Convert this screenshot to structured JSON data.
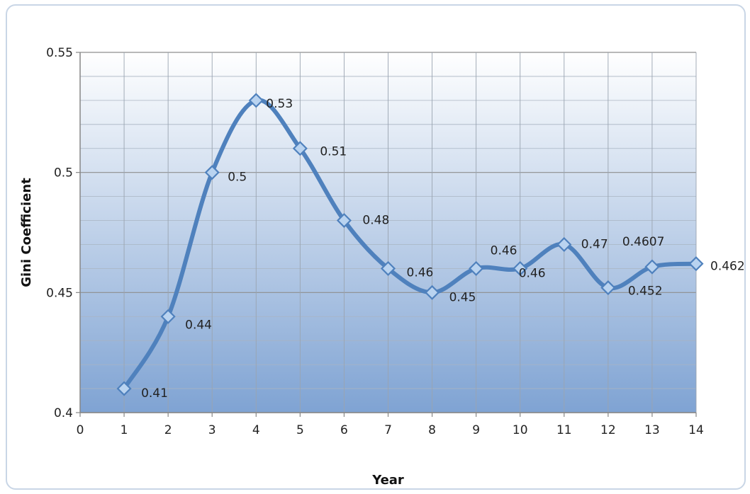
{
  "chart_data": {
    "type": "line",
    "title": "",
    "xlabel": "Year",
    "ylabel": "Gini Coefficient",
    "xlim": [
      0,
      14
    ],
    "ylim": [
      0.4,
      0.55
    ],
    "x_ticks": [
      "0",
      "1",
      "2",
      "3",
      "4",
      "5",
      "6",
      "7",
      "8",
      "9",
      "10",
      "11",
      "12",
      "13",
      "14"
    ],
    "y_ticks": [
      {
        "value": 0.4,
        "label": "0.4"
      },
      {
        "value": 0.45,
        "label": "0.45"
      },
      {
        "value": 0.5,
        "label": "0.5"
      },
      {
        "value": 0.55,
        "label": "0.55"
      }
    ],
    "grid": true,
    "smooth": true,
    "line_color": "#4f81bd",
    "marker_fill": "#b9d3f0",
    "plot_gradient": [
      "#ffffff",
      "#7fa3d3"
    ],
    "series": [
      {
        "x": [
          1,
          2,
          3,
          4,
          5,
          6,
          7,
          8,
          9,
          10,
          11,
          12,
          13,
          14
        ],
        "values": [
          0.41,
          0.44,
          0.5,
          0.53,
          0.51,
          0.48,
          0.46,
          0.45,
          0.46,
          0.46,
          0.47,
          0.452,
          0.4607,
          0.462
        ],
        "labels": [
          "0.41",
          "0.44",
          "0.5",
          "0.53",
          "0.51",
          "0.48",
          "0.46",
          "0.45",
          "0.46",
          "0.46",
          "0.47",
          "0.452",
          "0.4607",
          "0.462"
        ]
      }
    ]
  }
}
